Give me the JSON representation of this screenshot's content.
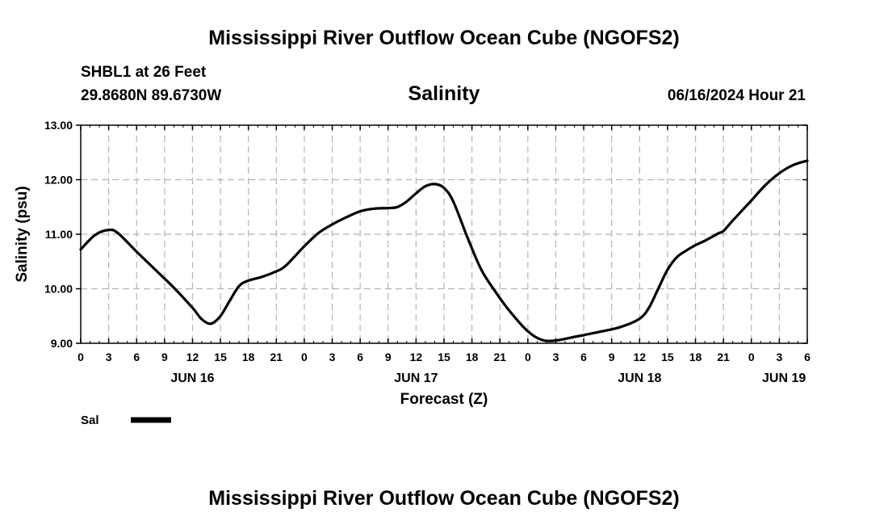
{
  "page": {
    "title": "Mississippi River Outflow Ocean Cube (NGOFS2)",
    "footer_title": "Mississippi River Outflow Ocean Cube (NGOFS2)",
    "station": "SHBL1 at 26 Feet",
    "coords": "29.8680N  89.6730W",
    "variable": "Salinity",
    "datetime": "06/16/2024 Hour 21"
  },
  "chart_data": {
    "type": "line",
    "xlabel": "Forecast (Z)",
    "ylabel": "Salinity (psu)",
    "x_unit": "hours from 06/16 00Z",
    "xlim": [
      0,
      78
    ],
    "ylim": [
      9.0,
      13.0
    ],
    "y_ticks": [
      "9.00",
      "10.00",
      "11.00",
      "12.00",
      "13.00"
    ],
    "y_tick_values": [
      9,
      10,
      11,
      12,
      13
    ],
    "x_tick_labels": [
      "0",
      "3",
      "6",
      "9",
      "12",
      "15",
      "18",
      "21",
      "0",
      "3",
      "6",
      "9",
      "12",
      "15",
      "18",
      "21",
      "0",
      "3",
      "6",
      "9",
      "12",
      "15",
      "18",
      "21",
      "0",
      "3",
      "6"
    ],
    "day_labels": [
      {
        "label": "JUN 16",
        "hour": 12
      },
      {
        "label": "JUN 17",
        "hour": 36
      },
      {
        "label": "JUN 18",
        "hour": 60
      },
      {
        "label": "JUN 19",
        "hour": 75.5
      }
    ],
    "grid": true,
    "legend_position": "bottom-left",
    "series": [
      {
        "name": "Sal",
        "color": "#000000",
        "x": [
          0,
          1.5,
          3,
          4,
          6,
          8,
          10,
          12,
          13,
          14,
          15,
          16,
          17,
          18,
          19.5,
          21,
          22,
          24,
          25.5,
          27,
          28.5,
          30,
          31.5,
          33,
          34,
          35,
          36,
          37,
          38,
          39,
          40,
          41.5,
          43,
          44.5,
          46,
          48,
          49.5,
          51,
          52.5,
          54,
          56,
          58,
          60,
          61,
          62,
          63,
          64,
          65,
          66,
          67,
          68.5,
          69,
          70,
          72,
          73.5,
          75,
          76.5,
          78
        ],
        "values": [
          10.72,
          10.98,
          11.08,
          11.02,
          10.68,
          10.35,
          10.02,
          9.65,
          9.44,
          9.36,
          9.5,
          9.78,
          10.05,
          10.15,
          10.22,
          10.32,
          10.42,
          10.78,
          11.02,
          11.18,
          11.31,
          11.42,
          11.47,
          11.48,
          11.5,
          11.6,
          11.75,
          11.88,
          11.92,
          11.85,
          11.6,
          10.95,
          10.35,
          9.95,
          9.6,
          9.22,
          9.06,
          9.05,
          9.1,
          9.15,
          9.22,
          9.3,
          9.45,
          9.65,
          10.0,
          10.35,
          10.58,
          10.7,
          10.8,
          10.88,
          11.02,
          11.06,
          11.25,
          11.62,
          11.9,
          12.12,
          12.27,
          12.35
        ]
      }
    ]
  }
}
